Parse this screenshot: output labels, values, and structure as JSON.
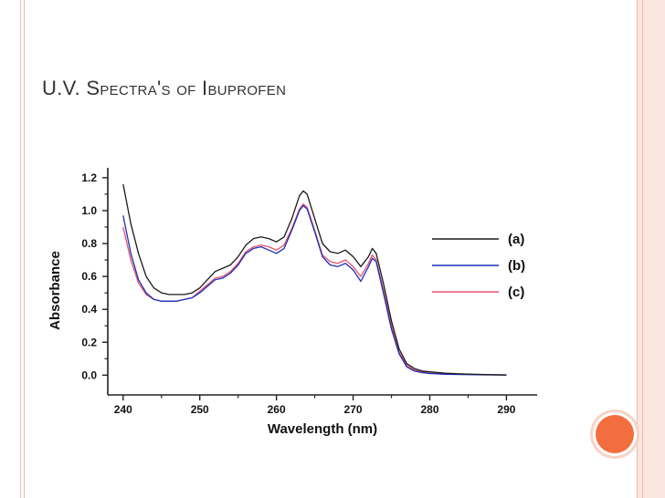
{
  "slide": {
    "title": "U.V. Spectra's of Ibuprofen",
    "accent_color": "#f36e3e",
    "rule_color": "#f2b8a6",
    "band_color": "#fbe7df"
  },
  "chart_data": {
    "type": "line",
    "title": "",
    "xlabel": "Wavelength (nm)",
    "ylabel": "Absorbance",
    "xlim": [
      238,
      294
    ],
    "ylim": [
      -0.12,
      1.26
    ],
    "xticks": [
      240,
      250,
      260,
      270,
      280,
      290
    ],
    "xtick_labels": [
      "240",
      "250",
      "260",
      "270",
      "280",
      "290"
    ],
    "yticks": [
      0.0,
      0.2,
      0.4,
      0.6,
      0.8,
      1.0,
      1.2
    ],
    "ytick_labels": [
      "0.0",
      "0.2",
      "0.4",
      "0.6",
      "0.8",
      "1.0",
      "1.2"
    ],
    "grid": false,
    "legend_position": "right",
    "series": [
      {
        "name": "(a)",
        "color": "#1a1a1a",
        "x": [
          240,
          241,
          242,
          243,
          244,
          245,
          246,
          247,
          248,
          249,
          250,
          251,
          252,
          253,
          254,
          255,
          256,
          257,
          258,
          259,
          260,
          261,
          262,
          263,
          263.5,
          264,
          265,
          266,
          267,
          268,
          269,
          270,
          271,
          272,
          272.5,
          273,
          274,
          275,
          276,
          277,
          278,
          279,
          280,
          282,
          284,
          286,
          288,
          290
        ],
        "y": [
          1.16,
          0.92,
          0.74,
          0.6,
          0.53,
          0.5,
          0.49,
          0.49,
          0.49,
          0.5,
          0.53,
          0.58,
          0.63,
          0.65,
          0.67,
          0.72,
          0.79,
          0.83,
          0.84,
          0.83,
          0.81,
          0.84,
          0.95,
          1.09,
          1.12,
          1.1,
          0.95,
          0.8,
          0.75,
          0.74,
          0.76,
          0.72,
          0.66,
          0.72,
          0.77,
          0.74,
          0.55,
          0.33,
          0.16,
          0.07,
          0.04,
          0.025,
          0.02,
          0.012,
          0.008,
          0.005,
          0.003,
          0.002
        ]
      },
      {
        "name": "(b)",
        "color": "#1a2fb8",
        "x": [
          240,
          241,
          242,
          243,
          244,
          245,
          246,
          247,
          248,
          249,
          250,
          251,
          252,
          253,
          254,
          255,
          256,
          257,
          258,
          259,
          260,
          261,
          262,
          263,
          263.5,
          264,
          265,
          266,
          267,
          268,
          269,
          270,
          271,
          272,
          272.5,
          273,
          274,
          275,
          276,
          277,
          278,
          279,
          280,
          282,
          284,
          286,
          288,
          290
        ],
        "y": [
          0.97,
          0.74,
          0.58,
          0.5,
          0.46,
          0.45,
          0.45,
          0.45,
          0.46,
          0.47,
          0.5,
          0.54,
          0.58,
          0.59,
          0.62,
          0.67,
          0.74,
          0.77,
          0.78,
          0.76,
          0.74,
          0.77,
          0.88,
          1.0,
          1.03,
          1.01,
          0.87,
          0.72,
          0.67,
          0.66,
          0.68,
          0.64,
          0.57,
          0.66,
          0.71,
          0.69,
          0.49,
          0.28,
          0.13,
          0.05,
          0.025,
          0.015,
          0.01,
          0.006,
          0.004,
          0.003,
          0.002,
          0.001
        ]
      },
      {
        "name": "(c)",
        "color": "#e8506a",
        "x": [
          240,
          241,
          242,
          243,
          244,
          245,
          246,
          247,
          248,
          249,
          250,
          251,
          252,
          253,
          254,
          255,
          256,
          257,
          258,
          259,
          260,
          261,
          262,
          263,
          263.5,
          264,
          265,
          266,
          267,
          268,
          269,
          270,
          271,
          272,
          272.5,
          273,
          274,
          275,
          276,
          277,
          278,
          279,
          280,
          282,
          284,
          286,
          288,
          290
        ],
        "y": [
          0.9,
          0.7,
          0.56,
          0.49,
          0.46,
          0.45,
          0.45,
          0.45,
          0.46,
          0.47,
          0.51,
          0.55,
          0.59,
          0.6,
          0.63,
          0.68,
          0.75,
          0.78,
          0.79,
          0.78,
          0.76,
          0.79,
          0.89,
          1.01,
          1.04,
          1.02,
          0.88,
          0.73,
          0.69,
          0.68,
          0.7,
          0.66,
          0.6,
          0.68,
          0.73,
          0.7,
          0.51,
          0.3,
          0.14,
          0.06,
          0.03,
          0.02,
          0.012,
          0.008,
          0.005,
          0.003,
          0.002,
          0.001
        ]
      }
    ]
  }
}
